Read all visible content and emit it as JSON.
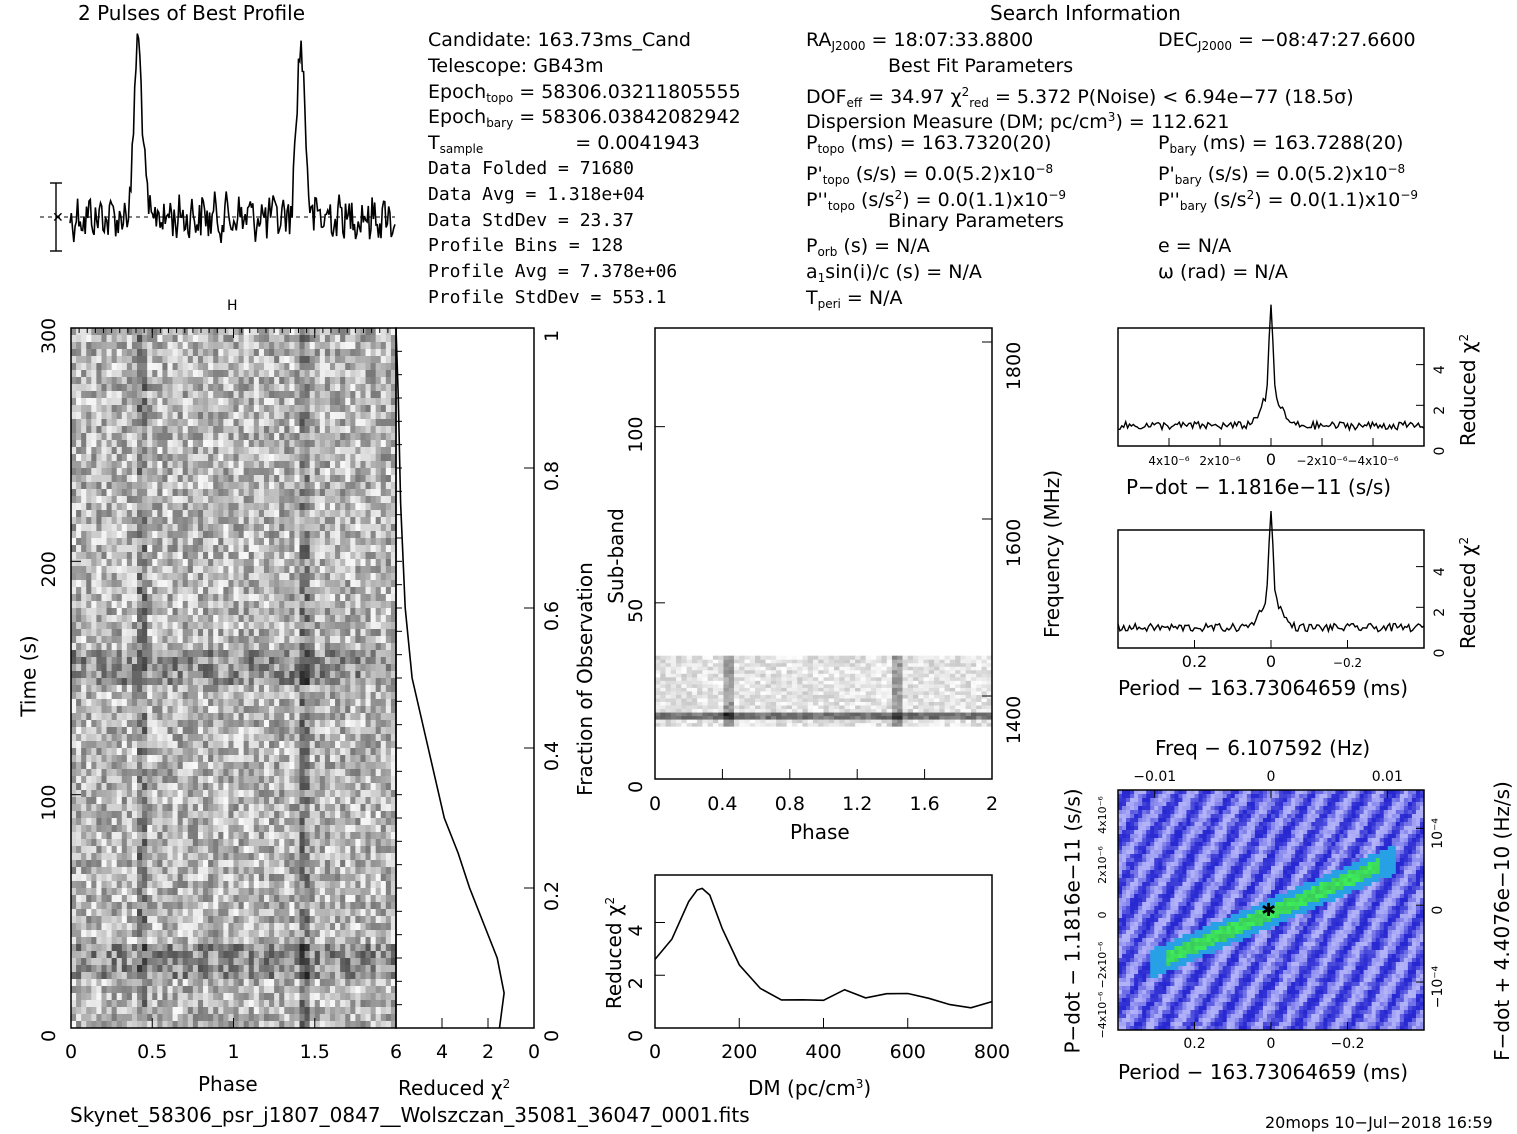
{
  "headers": {
    "profile": "2 Pulses of Best Profile",
    "search": "Search Information",
    "bestfit": "Best Fit Parameters",
    "binary": "Binary Parameters"
  },
  "info": {
    "candidate": "Candidate:  163.73ms_Cand",
    "telescope": "Telescope:  GB43m",
    "epoch_topo_label": "Epoch",
    "epoch_topo_sub": "topo",
    "epoch_topo_val": "= 58306.03211805555",
    "epoch_bary_label": "Epoch",
    "epoch_bary_sub": "bary",
    "epoch_bary_val": "= 58306.03842082942",
    "tsample_label": "T",
    "tsample_sub": "sample",
    "tsample_val": "=   0.0041943",
    "data_folded": "Data Folded    =   71680",
    "data_avg": "Data Avg       =   1.318e+04",
    "data_stddev": "Data StdDev    =   23.37",
    "profile_bins": "Profile Bins   =   128",
    "profile_avg": "Profile Avg    =   7.378e+06",
    "profile_stddev": "Profile StdDev =   553.1"
  },
  "search": {
    "ra": "RA",
    "ra_sub": "J2000",
    "ra_val": " = 18:07:33.8800",
    "dec": "DEC",
    "dec_sub": "J2000",
    "dec_val": " = −08:47:27.6600",
    "dof": "DOF",
    "dof_sub": "eff",
    "dof_val": " = 34.97  χ",
    "chi_sup": "2",
    "chi_sub": "red",
    "chi_val": " = 5.372  P(Noise) < 6.94e−77  (18.5σ)",
    "dm": "Dispersion Measure (DM; pc/cm",
    "dm_sup": "3",
    "dm_val": ") = 112.621",
    "ptopo": "P",
    "ptopo_sub": "topo",
    "ptopo_val": " (ms) =  163.7320(20)",
    "pbary": "P",
    "pbary_sub": "bary",
    "pbary_val": " (ms) =  163.7288(20)",
    "pdtopo": "P'",
    "pdtopo_sub": "topo",
    "pdtopo_val": " (s/s) = 0.0(5.2)x10",
    "pdtopo_exp": "−8",
    "pdbary": "P'",
    "pdbary_sub": "bary",
    "pdbary_val": " (s/s) = 0.0(5.2)x10",
    "pdbary_exp": "−8",
    "pddtopo": "P''",
    "pddtopo_sub": "topo",
    "pddtopo_val": " (s/s",
    "pddtopo_sup": "2",
    "pddtopo_val2": ") = 0.0(1.1)x10",
    "pddtopo_exp": "−9",
    "pddbary": "P''",
    "pddbary_sub": "bary",
    "pddbary_val": " (s/s",
    "pddbary_sup": "2",
    "pddbary_val2": ") = 0.0(1.1)x10",
    "pddbary_exp": "−9",
    "porb": "P",
    "porb_sub": "orb",
    "porb_val": " (s) = N/A",
    "e": "e = N/A",
    "a1": "a",
    "a1_sub": "1",
    "a1_val": "sin(i)/c (s) = N/A",
    "omega": "ω (rad) = N/A",
    "tperi": "T",
    "tperi_sub": "peri",
    "tperi_val": " = N/A"
  },
  "footer": {
    "filename": "Skynet_58306_psr_j1807_0847__Wolszczan_35081_36047_0001.fits",
    "stamp": "20mops  10−Jul−2018 16:59"
  },
  "chart_data": [
    {
      "id": "profile",
      "type": "line",
      "title": "2 Pulses of Best Profile",
      "x_range": [
        0,
        2
      ],
      "peaks_at_phase": [
        0.42,
        1.42
      ],
      "series": [
        {
          "values_description_only": false,
          "peak_rel": 1.0
        }
      ]
    },
    {
      "id": "time_phase",
      "type": "heatmap",
      "xlabel": "Phase",
      "ylabel": "Time (s)",
      "xticks": [
        "0",
        "0.5",
        "1",
        "1.5"
      ],
      "yticks": [
        "0",
        "100",
        "200",
        "300"
      ],
      "xlim": [
        0,
        2
      ],
      "ylim": [
        0,
        300
      ]
    },
    {
      "id": "time_chi2",
      "type": "line",
      "xlabel": "Reduced χ",
      "xlabel_sup": "2",
      "ylabel": "Fraction of Observation",
      "xticks": [
        "6",
        "4",
        "2",
        "0"
      ],
      "yticks": [
        "0",
        "0.2",
        "0.4",
        "0.6",
        "0.8",
        "1"
      ],
      "xlim": [
        6,
        0
      ],
      "ylim": [
        0,
        1
      ],
      "x": [
        1.5,
        1.3,
        1.6,
        2.2,
        2.8,
        3.3,
        3.9,
        4.6,
        5.3,
        5.6,
        5.8,
        5.9,
        6.0
      ],
      "y": [
        0.0,
        0.05,
        0.1,
        0.15,
        0.2,
        0.25,
        0.3,
        0.4,
        0.5,
        0.6,
        0.75,
        0.9,
        1.0
      ]
    },
    {
      "id": "subband_phase",
      "type": "heatmap",
      "xlabel": "Phase",
      "ylabel": "Sub-band",
      "y2label": "Frequency (MHz)",
      "xticks": [
        "0",
        "0.4",
        "0.8",
        "1.2",
        "1.6",
        "2"
      ],
      "yticks": [
        "0",
        "50",
        "100"
      ],
      "y2ticks": [
        "1400",
        "1600",
        "1800"
      ],
      "xlim": [
        0,
        2
      ],
      "ylim": [
        0,
        128
      ],
      "filled_band": [
        15,
        35
      ]
    },
    {
      "id": "dm_chi2",
      "type": "line",
      "xlabel": "DM (pc/cm",
      "xlabel_sup": "3",
      "xlabel_end": ")",
      "ylabel": "Reduced χ",
      "ylabel_sup": "2",
      "xticks": [
        "0",
        "200",
        "400",
        "600",
        "800"
      ],
      "yticks": [
        "0",
        "2",
        "4"
      ],
      "xlim": [
        0,
        800
      ],
      "ylim": [
        0,
        5.8
      ],
      "x": [
        0,
        40,
        80,
        100,
        112,
        130,
        160,
        200,
        250,
        300,
        350,
        400,
        450,
        500,
        550,
        600,
        650,
        700,
        750,
        800
      ],
      "y": [
        2.6,
        3.4,
        4.8,
        5.2,
        5.3,
        5.0,
        3.8,
        2.4,
        1.5,
        1.1,
        1.1,
        1.0,
        1.5,
        1.1,
        1.3,
        1.3,
        1.1,
        0.9,
        0.8,
        1.0
      ]
    },
    {
      "id": "pdot_chi2",
      "type": "line",
      "xlabel": "P−dot − 1.1816e−11 (s/s)",
      "ylabel": "Reduced χ",
      "ylabel_sup": "2",
      "xticks": [
        "4x10⁻⁶",
        "2x10⁻⁶",
        "0",
        "−2x10⁻⁶",
        "−4x10⁻⁶"
      ],
      "yticks": [
        "0",
        "2",
        "4"
      ],
      "ylim": [
        0,
        5.8
      ],
      "peak_value": 5.4
    },
    {
      "id": "period_chi2",
      "type": "line",
      "xlabel": "Period − 163.73064659 (ms)",
      "ylabel": "Reduced χ",
      "ylabel_sup": "2",
      "xticks": [
        "0.2",
        "0",
        "−0.2"
      ],
      "yticks": [
        "0",
        "2",
        "4"
      ],
      "ylim": [
        0,
        5.8
      ],
      "peak_value": 5.4
    },
    {
      "id": "ppdot_plane",
      "type": "heatmap",
      "xlabel": "Period − 163.73064659 (ms)",
      "ylabel": "P−dot − 1.1816e−11 (s/s)",
      "x2label": "Freq − 6.107592 (Hz)",
      "y2label": "F−dot + 4.4076e−10 (Hz/s)",
      "xticks": [
        "0.2",
        "0",
        "−0.2"
      ],
      "x2ticks": [
        "−0.01",
        "0",
        "0.01"
      ],
      "yticks": [
        "4x10⁻⁶",
        "2x10⁻⁶",
        "0",
        "−2x10⁻⁶",
        "−4x10⁻⁶"
      ],
      "y2ticks": [
        "−10⁻⁴",
        "0",
        "10⁻⁴"
      ],
      "colors": {
        "low": "#2020e0",
        "mid": "#a0a0ff",
        "high": "#30e060"
      }
    }
  ]
}
